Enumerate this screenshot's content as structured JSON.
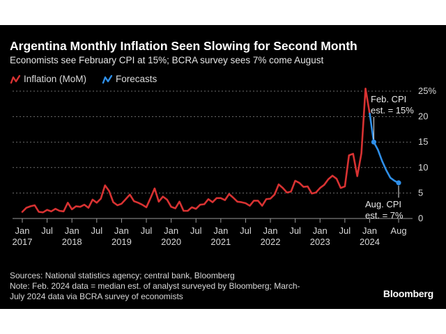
{
  "title": "Argentina Monthly Inflation Seen Slowing for Second Month",
  "subtitle": "Economists see February CPI at 15%; BCRA survey sees 7% come August",
  "legend": {
    "inflation": "Inflation (MoM)",
    "forecasts": "Forecasts"
  },
  "annotations": {
    "feb_line1": "Feb. CPI",
    "feb_line2": "est. = 15%",
    "aug_line1": "Aug. CPI",
    "aug_line2": "est. = 7%"
  },
  "footer": {
    "sources": "Sources: National statistics agency; central bank, Bloomberg",
    "note_line1": "Note: Feb. 2024 data = median est. of analyst surveyed by Bloomberg; March-",
    "note_line2": "July 2024 data via BCRA survey of economists"
  },
  "brand": "Bloomberg",
  "colors": {
    "background": "#000000",
    "inflation": "#d83232",
    "forecasts": "#2f8fe8",
    "grid": "#6e6e6e"
  },
  "chart_data": {
    "type": "line",
    "title": "Argentina Monthly Inflation Seen Slowing for Second Month",
    "ylim": [
      0,
      25
    ],
    "y_ticks": [
      "0",
      "5",
      "10",
      "15",
      "20",
      "25%"
    ],
    "x_ticks": [
      {
        "label": "Jan",
        "year": "2017",
        "date": "2017-01"
      },
      {
        "label": "Jul",
        "year": "",
        "date": "2017-07"
      },
      {
        "label": "Jan",
        "year": "2018",
        "date": "2018-01"
      },
      {
        "label": "Jul",
        "year": "",
        "date": "2018-07"
      },
      {
        "label": "Jan",
        "year": "2019",
        "date": "2019-01"
      },
      {
        "label": "Jul",
        "year": "",
        "date": "2019-07"
      },
      {
        "label": "Jan",
        "year": "2020",
        "date": "2020-01"
      },
      {
        "label": "Jul",
        "year": "",
        "date": "2020-07"
      },
      {
        "label": "Jan",
        "year": "2021",
        "date": "2021-01"
      },
      {
        "label": "Jul",
        "year": "",
        "date": "2021-07"
      },
      {
        "label": "Jan",
        "year": "2022",
        "date": "2022-01"
      },
      {
        "label": "Jul",
        "year": "",
        "date": "2022-07"
      },
      {
        "label": "Jan",
        "year": "2023",
        "date": "2023-01"
      },
      {
        "label": "Jul",
        "year": "",
        "date": "2023-07"
      },
      {
        "label": "Jan",
        "year": "2024",
        "date": "2024-01"
      },
      {
        "label": "Aug",
        "year": "",
        "date": "2024-08"
      }
    ],
    "grid": true,
    "legend_position": "top-left",
    "series": [
      {
        "name": "Inflation (MoM)",
        "color": "#d83232",
        "points": [
          [
            "2017-01",
            1.3
          ],
          [
            "2017-02",
            2.1
          ],
          [
            "2017-03",
            2.4
          ],
          [
            "2017-04",
            2.6
          ],
          [
            "2017-05",
            1.3
          ],
          [
            "2017-06",
            1.2
          ],
          [
            "2017-07",
            1.7
          ],
          [
            "2017-08",
            1.4
          ],
          [
            "2017-09",
            1.9
          ],
          [
            "2017-10",
            1.5
          ],
          [
            "2017-11",
            1.4
          ],
          [
            "2017-12",
            3.1
          ],
          [
            "2018-01",
            1.8
          ],
          [
            "2018-02",
            2.4
          ],
          [
            "2018-03",
            2.3
          ],
          [
            "2018-04",
            2.7
          ],
          [
            "2018-05",
            2.1
          ],
          [
            "2018-06",
            3.7
          ],
          [
            "2018-07",
            3.1
          ],
          [
            "2018-08",
            3.9
          ],
          [
            "2018-09",
            6.5
          ],
          [
            "2018-10",
            5.4
          ],
          [
            "2018-11",
            3.2
          ],
          [
            "2018-12",
            2.6
          ],
          [
            "2019-01",
            2.9
          ],
          [
            "2019-02",
            3.8
          ],
          [
            "2019-03",
            4.7
          ],
          [
            "2019-04",
            3.4
          ],
          [
            "2019-05",
            3.1
          ],
          [
            "2019-06",
            2.7
          ],
          [
            "2019-07",
            2.2
          ],
          [
            "2019-08",
            4.0
          ],
          [
            "2019-09",
            5.9
          ],
          [
            "2019-10",
            3.3
          ],
          [
            "2019-11",
            4.3
          ],
          [
            "2019-12",
            3.7
          ],
          [
            "2020-01",
            2.3
          ],
          [
            "2020-02",
            2.0
          ],
          [
            "2020-03",
            3.3
          ],
          [
            "2020-04",
            1.5
          ],
          [
            "2020-05",
            1.5
          ],
          [
            "2020-06",
            2.2
          ],
          [
            "2020-07",
            1.9
          ],
          [
            "2020-08",
            2.7
          ],
          [
            "2020-09",
            2.8
          ],
          [
            "2020-10",
            3.8
          ],
          [
            "2020-11",
            3.2
          ],
          [
            "2020-12",
            4.0
          ],
          [
            "2021-01",
            4.0
          ],
          [
            "2021-02",
            3.6
          ],
          [
            "2021-03",
            4.8
          ],
          [
            "2021-04",
            4.1
          ],
          [
            "2021-05",
            3.3
          ],
          [
            "2021-06",
            3.2
          ],
          [
            "2021-07",
            3.0
          ],
          [
            "2021-08",
            2.5
          ],
          [
            "2021-09",
            3.5
          ],
          [
            "2021-10",
            3.5
          ],
          [
            "2021-11",
            2.5
          ],
          [
            "2021-12",
            3.8
          ],
          [
            "2022-01",
            3.9
          ],
          [
            "2022-02",
            4.7
          ],
          [
            "2022-03",
            6.7
          ],
          [
            "2022-04",
            6.0
          ],
          [
            "2022-05",
            5.1
          ],
          [
            "2022-06",
            5.3
          ],
          [
            "2022-07",
            7.4
          ],
          [
            "2022-08",
            7.0
          ],
          [
            "2022-09",
            6.2
          ],
          [
            "2022-10",
            6.3
          ],
          [
            "2022-11",
            4.9
          ],
          [
            "2022-12",
            5.1
          ],
          [
            "2023-01",
            6.0
          ],
          [
            "2023-02",
            6.6
          ],
          [
            "2023-03",
            7.7
          ],
          [
            "2023-04",
            8.4
          ],
          [
            "2023-05",
            7.8
          ],
          [
            "2023-06",
            6.0
          ],
          [
            "2023-07",
            6.3
          ],
          [
            "2023-08",
            12.4
          ],
          [
            "2023-09",
            12.7
          ],
          [
            "2023-10",
            8.3
          ],
          [
            "2023-11",
            12.8
          ],
          [
            "2023-12",
            25.5
          ],
          [
            "2024-01",
            20.6
          ]
        ]
      },
      {
        "name": "Forecasts",
        "color": "#2f8fe8",
        "points": [
          [
            "2024-01",
            20.6
          ],
          [
            "2024-02",
            15.0
          ],
          [
            "2024-03",
            13.5
          ],
          [
            "2024-04",
            11.3
          ],
          [
            "2024-05",
            9.5
          ],
          [
            "2024-06",
            8.0
          ],
          [
            "2024-07",
            7.4
          ],
          [
            "2024-08",
            7.0
          ]
        ]
      }
    ]
  }
}
